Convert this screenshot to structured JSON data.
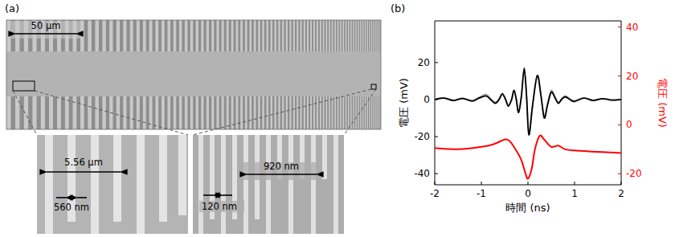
{
  "panels": {
    "a": {
      "label": "(a)",
      "scale_bar": "50 µm",
      "left_zoom": {
        "period": "5.56 µm",
        "width": "560 nm"
      },
      "right_zoom": {
        "period": "920 nm",
        "width": "120 nm"
      }
    },
    "b": {
      "label": "(b)"
    }
  },
  "chart_data": {
    "type": "line",
    "xlabel": "時間 (ns)",
    "ylabel": "電圧 (mV)",
    "y2label": "電圧 (mV)",
    "xlim": [
      -2,
      2
    ],
    "xticks": [
      -2,
      -1,
      0,
      1,
      2
    ],
    "ylim": [
      -46,
      42.5
    ],
    "yticks": [
      -40,
      -20,
      0,
      20
    ],
    "y2lim": [
      -24.5,
      42.5
    ],
    "y2ticks": [
      -20,
      0,
      20,
      40
    ],
    "series": [
      {
        "color": "#a6a6a6",
        "x": [
          -2,
          -1.8,
          -1.6,
          -1.4,
          -1.2,
          -1.05,
          -0.9,
          -0.8,
          -0.7,
          -0.62,
          -0.55,
          -0.48,
          -0.42,
          -0.35,
          -0.3,
          -0.25,
          -0.2,
          -0.14,
          -0.08,
          -0.03,
          0.02,
          0.1,
          0.2,
          0.28,
          0.35,
          0.42,
          0.5,
          0.58,
          0.65,
          0.72,
          0.8,
          0.9,
          1.0,
          1.2,
          1.4,
          1.6,
          1.8,
          2
        ],
        "values": [
          0.3,
          1,
          -0.3,
          0.8,
          -0.5,
          1.2,
          2.8,
          0.5,
          -1.5,
          0.5,
          3.5,
          0.5,
          -3,
          0.5,
          5,
          0.5,
          -6.5,
          2,
          16,
          2,
          -18,
          -3,
          13,
          2,
          -9,
          -2,
          5,
          1.5,
          -1.5,
          0.5,
          2,
          0.5,
          -0.5,
          1,
          -0.3,
          0.6,
          -0.2,
          0.2
        ]
      },
      {
        "color": "#000000",
        "x": [
          -2,
          -1.8,
          -1.6,
          -1.4,
          -1.2,
          -1.05,
          -0.9,
          -0.8,
          -0.7,
          -0.62,
          -0.55,
          -0.48,
          -0.42,
          -0.35,
          -0.3,
          -0.25,
          -0.2,
          -0.14,
          -0.08,
          -0.03,
          0.02,
          0.1,
          0.2,
          0.28,
          0.35,
          0.42,
          0.5,
          0.58,
          0.65,
          0.72,
          0.8,
          0.9,
          1.0,
          1.2,
          1.4,
          1.6,
          1.8,
          2
        ],
        "values": [
          0,
          0.8,
          -0.5,
          0.6,
          -0.8,
          0.8,
          2,
          0,
          -2,
          0,
          3,
          0,
          -3.5,
          0,
          5,
          0,
          -7,
          2,
          17,
          2,
          -19,
          -3,
          13,
          2,
          -10,
          -3,
          4,
          1,
          -2,
          0,
          1.5,
          0,
          -1,
          0.8,
          -0.5,
          0.5,
          -0.3,
          0
        ]
      },
      {
        "color": "#ff0000",
        "axis": "y2",
        "x": [
          -2,
          -1.5,
          -1,
          -0.75,
          -0.5,
          -0.4,
          -0.3,
          -0.15,
          -0.05,
          0,
          0.08,
          0.15,
          0.25,
          0.35,
          0.5,
          0.65,
          0.8,
          1,
          1.5,
          2
        ],
        "values": [
          -9.5,
          -10,
          -9,
          -8,
          -6,
          -6.5,
          -9,
          -14,
          -20,
          -22,
          -18,
          -10,
          -4.5,
          -6,
          -9,
          -8.5,
          -10,
          -10.5,
          -11,
          -11.5
        ]
      }
    ]
  }
}
